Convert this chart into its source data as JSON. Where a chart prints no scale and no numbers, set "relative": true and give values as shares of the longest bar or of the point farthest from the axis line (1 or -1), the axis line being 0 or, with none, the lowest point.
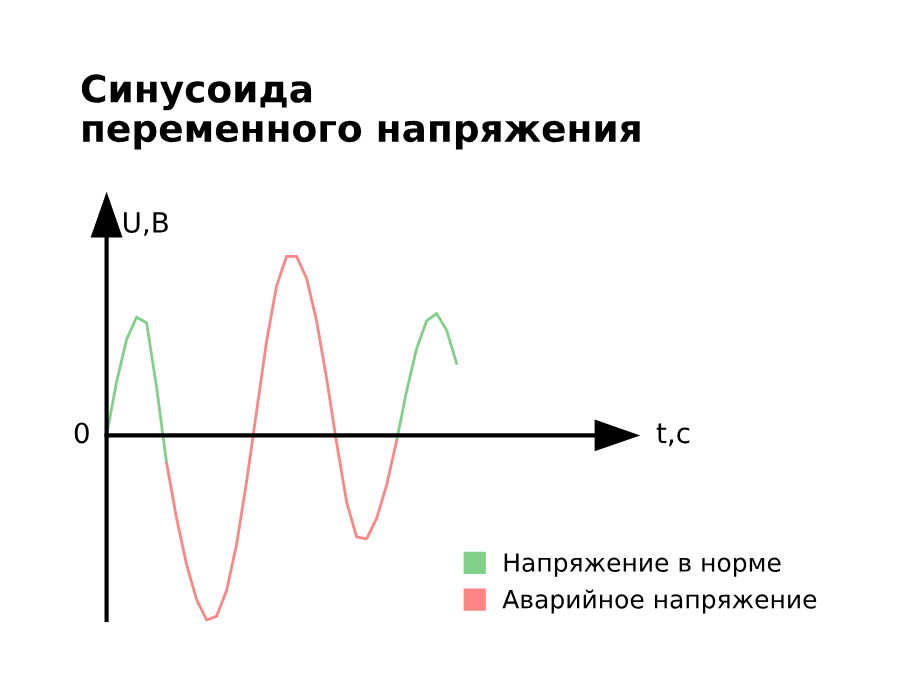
{
  "chart_data": {
    "type": "line",
    "title": "Синусоида\nпеременного напряжения",
    "ylabel": "U,В",
    "relative": true,
    "categories": [
      null,
      null,
      null,
      null,
      null,
      null,
      null,
      null,
      null,
      null,
      null,
      null,
      null,
      null,
      null,
      null,
      null,
      null,
      null,
      null,
      null,
      null,
      null,
      null,
      null,
      null,
      null,
      null,
      null,
      null,
      null,
      null,
      null,
      null,
      null,
      null
    ],
    "series": [
      {
        "name": "Напряжение в норме",
        "color": "#7fd18a",
        "values": [
          0,
          0.29,
          0.52,
          0.64,
          0.61,
          0.26,
          -0.15,
          null,
          null,
          null,
          null,
          null,
          null,
          null,
          null,
          null,
          null,
          null,
          null,
          null,
          null,
          null,
          null,
          null,
          null,
          null,
          null,
          null,
          null,
          -0.03,
          0.24,
          0.47,
          0.62,
          0.66,
          0.57,
          0.39
        ]
      },
      {
        "name": "Аварийное напряжение",
        "color": "#ff8484",
        "values": [
          null,
          null,
          null,
          null,
          null,
          null,
          -0.15,
          -0.45,
          -0.7,
          -0.89,
          -1,
          -0.98,
          -0.84,
          -0.59,
          -0.25,
          0.13,
          0.51,
          0.81,
          0.97,
          0.97,
          0.85,
          0.62,
          0.31,
          -0.04,
          -0.36,
          -0.55,
          -0.56,
          -0.45,
          -0.27,
          -0.03,
          null,
          null,
          null,
          null,
          null,
          null
        ]
      }
    ],
    "annotations": [
      "0",
      "t,с"
    ],
    "legend": "bottom right",
    "marker": "none",
    "line_style": "solid"
  }
}
